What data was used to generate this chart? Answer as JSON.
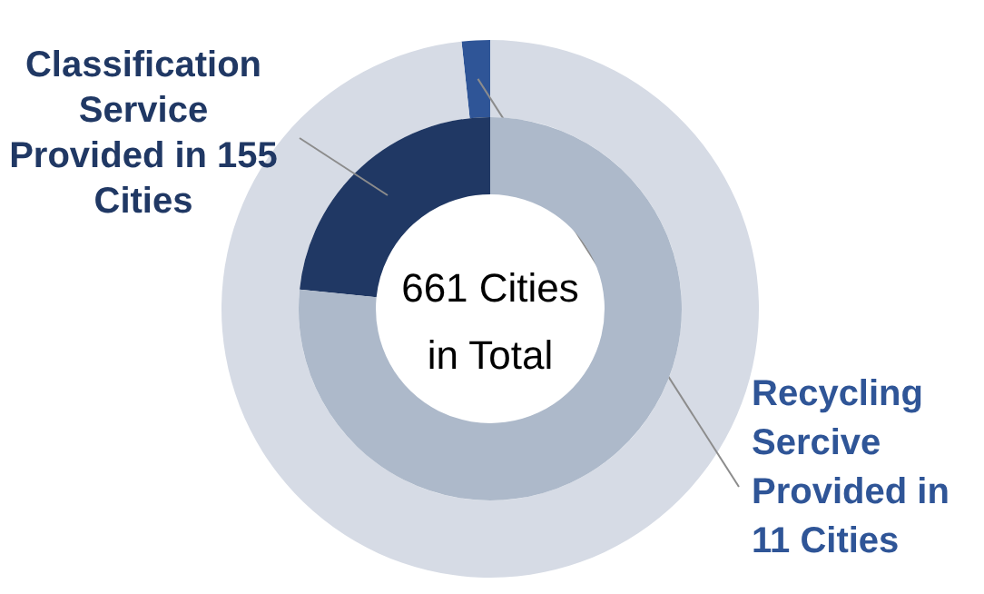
{
  "chart_data": [
    {
      "type": "donut",
      "categories": [
        null,
        null
      ],
      "values": [
        1.7,
        98.3
      ],
      "colors": [
        "#2f5597",
        "#d6dbe5"
      ],
      "annotations": [
        "Recycling Sercive Provided in 11 Cities"
      ]
    },
    {
      "type": "donut",
      "categories": [
        null,
        null
      ],
      "values": [
        23.4,
        76.6
      ],
      "colors": [
        "#203864",
        "#adb9ca"
      ],
      "annotations": [
        "Classification Service Provided in 155 Cities",
        "661 Cities in Total"
      ]
    }
  ]
}
